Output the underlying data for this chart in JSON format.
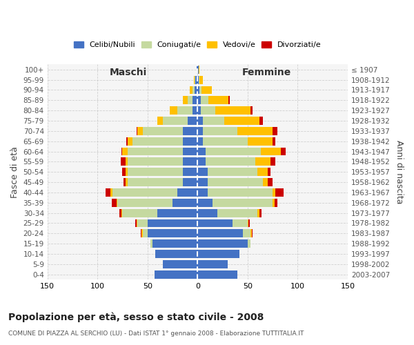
{
  "age_groups": [
    "0-4",
    "5-9",
    "10-14",
    "15-19",
    "20-24",
    "25-29",
    "30-34",
    "35-39",
    "40-44",
    "45-49",
    "50-54",
    "55-59",
    "60-64",
    "65-69",
    "70-74",
    "75-79",
    "80-84",
    "85-89",
    "90-94",
    "95-99",
    "100+"
  ],
  "birth_years": [
    "2003-2007",
    "1998-2002",
    "1993-1997",
    "1988-1992",
    "1983-1987",
    "1978-1982",
    "1973-1977",
    "1968-1972",
    "1963-1967",
    "1958-1962",
    "1953-1957",
    "1948-1952",
    "1943-1947",
    "1938-1942",
    "1933-1937",
    "1928-1932",
    "1923-1927",
    "1918-1922",
    "1913-1917",
    "1908-1912",
    "≤ 1907"
  ],
  "maschi": {
    "celibi": [
      43,
      35,
      42,
      45,
      50,
      50,
      40,
      25,
      20,
      15,
      15,
      15,
      15,
      15,
      15,
      10,
      5,
      5,
      3,
      2,
      1
    ],
    "coniugati": [
      0,
      0,
      0,
      2,
      5,
      10,
      35,
      55,
      65,
      55,
      55,
      55,
      55,
      50,
      40,
      25,
      15,
      5,
      2,
      1,
      0
    ],
    "vedovi": [
      0,
      0,
      0,
      0,
      1,
      1,
      1,
      1,
      2,
      2,
      2,
      2,
      5,
      5,
      5,
      5,
      8,
      5,
      3,
      1,
      0
    ],
    "divorziati": [
      0,
      0,
      0,
      0,
      1,
      1,
      2,
      5,
      5,
      2,
      3,
      5,
      1,
      1,
      1,
      0,
      0,
      0,
      0,
      0,
      0
    ]
  },
  "femmine": {
    "nubili": [
      40,
      30,
      42,
      50,
      45,
      35,
      20,
      15,
      10,
      10,
      10,
      8,
      8,
      5,
      5,
      5,
      3,
      3,
      2,
      1,
      1
    ],
    "coniugate": [
      0,
      0,
      0,
      3,
      8,
      15,
      40,
      60,
      65,
      55,
      50,
      50,
      55,
      45,
      35,
      22,
      15,
      8,
      2,
      1,
      0
    ],
    "vedove": [
      0,
      0,
      0,
      0,
      1,
      1,
      2,
      2,
      3,
      5,
      10,
      15,
      20,
      25,
      35,
      35,
      35,
      20,
      10,
      3,
      1
    ],
    "divorziate": [
      0,
      0,
      0,
      0,
      1,
      1,
      2,
      3,
      8,
      5,
      3,
      5,
      5,
      3,
      5,
      3,
      2,
      1,
      0,
      0,
      0
    ]
  },
  "colors": {
    "celibi": "#4472c4",
    "coniugati": "#c5d9a0",
    "vedovi": "#ffc000",
    "divorziati": "#cc0000"
  },
  "xlim": 150,
  "title": "Popolazione per età, sesso e stato civile - 2008",
  "subtitle": "COMUNE DI PIAZZA AL SERCHIO (LU) - Dati ISTAT 1° gennaio 2008 - Elaborazione TUTTITALIA.IT",
  "ylabel_left": "Fasce di età",
  "ylabel_right": "Anni di nascita",
  "xlabel_left": "Maschi",
  "xlabel_right": "Femmine",
  "legend_labels": [
    "Celibi/Nubili",
    "Coniugati/e",
    "Vedovi/e",
    "Divorziati/e"
  ],
  "bg_color": "#ffffff",
  "plot_bg_color": "#f5f5f5",
  "grid_color": "#cccccc"
}
